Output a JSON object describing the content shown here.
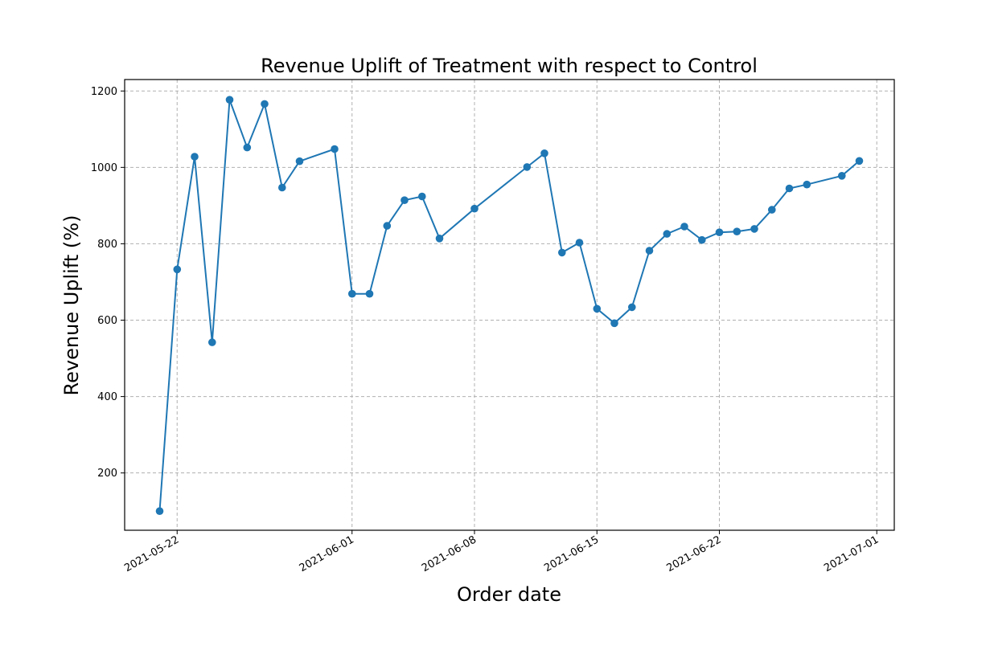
{
  "chart_data": {
    "type": "line",
    "title": "Revenue Uplift of Treatment with respect to Control",
    "xlabel": "Order date",
    "ylabel": "Revenue Uplift (%)",
    "x_ticks": [
      "2021-05-22",
      "2021-06-01",
      "2021-06-08",
      "2021-06-15",
      "2021-06-22",
      "2021-07-01"
    ],
    "y_ticks": [
      200,
      400,
      600,
      800,
      1000,
      1200
    ],
    "xlim": [
      "2021-05-19",
      "2021-07-02"
    ],
    "ylim": [
      50,
      1230
    ],
    "grid": true,
    "color": "#1f77b4",
    "series": [
      {
        "x": [
          "2021-05-21",
          "2021-05-22",
          "2021-05-23",
          "2021-05-24",
          "2021-05-25",
          "2021-05-26",
          "2021-05-27",
          "2021-05-28",
          "2021-05-29",
          "2021-05-31",
          "2021-06-01",
          "2021-06-02",
          "2021-06-03",
          "2021-06-04",
          "2021-06-05",
          "2021-06-06",
          "2021-06-08",
          "2021-06-11",
          "2021-06-12",
          "2021-06-13",
          "2021-06-14",
          "2021-06-15",
          "2021-06-16",
          "2021-06-17",
          "2021-06-18",
          "2021-06-19",
          "2021-06-20",
          "2021-06-21",
          "2021-06-22",
          "2021-06-23",
          "2021-06-24",
          "2021-06-25",
          "2021-06-26",
          "2021-06-27",
          "2021-06-29",
          "2021-06-30"
        ],
        "y": [
          100,
          733,
          1028,
          542,
          1177,
          1052,
          1166,
          947,
          1016,
          1048,
          669,
          669,
          847,
          914,
          924,
          814,
          892,
          1001,
          1037,
          777,
          803,
          630,
          592,
          634,
          782,
          826,
          845,
          810,
          830,
          832,
          839,
          889,
          945,
          955,
          978,
          1017
        ]
      }
    ]
  }
}
